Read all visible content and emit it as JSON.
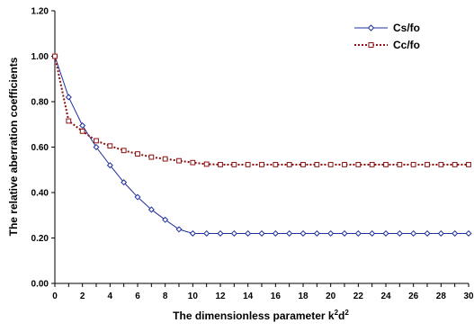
{
  "chart_data": {
    "type": "line",
    "xlabel": "The dimensionless parameter k",
    "xlabel_sup1": "2",
    "xlabel_mid": "d",
    "xlabel_sup2": "2",
    "ylabel": "The relative aberration coefficients",
    "xlim": [
      0,
      30
    ],
    "ylim": [
      0,
      1.2
    ],
    "x_ticks": [
      0,
      2,
      4,
      6,
      8,
      10,
      12,
      14,
      16,
      18,
      20,
      22,
      24,
      26,
      28,
      30
    ],
    "y_ticks": [
      "0.00",
      "0.20",
      "0.40",
      "0.60",
      "0.80",
      "1.00",
      "1.20"
    ],
    "grid": false,
    "legend_position": "top-right",
    "x": [
      0,
      1,
      2,
      3,
      4,
      5,
      6,
      7,
      8,
      9,
      10,
      11,
      12,
      13,
      14,
      15,
      16,
      17,
      18,
      19,
      20,
      21,
      22,
      23,
      24,
      25,
      26,
      27,
      28,
      29,
      30
    ],
    "series": [
      {
        "name": "Cs/fo",
        "color": "#1f2f9e",
        "marker": "diamond",
        "line": "solid",
        "values": [
          1.0,
          0.82,
          0.695,
          0.6,
          0.52,
          0.445,
          0.38,
          0.325,
          0.28,
          0.238,
          0.22,
          0.22,
          0.22,
          0.22,
          0.22,
          0.22,
          0.22,
          0.22,
          0.22,
          0.22,
          0.22,
          0.22,
          0.22,
          0.22,
          0.22,
          0.22,
          0.22,
          0.22,
          0.22,
          0.22,
          0.22
        ]
      },
      {
        "name": "Cc/fo",
        "color": "#8b1010",
        "marker": "square",
        "line": "dotted",
        "values": [
          1.0,
          0.715,
          0.67,
          0.628,
          0.605,
          0.585,
          0.57,
          0.556,
          0.548,
          0.54,
          0.532,
          0.525,
          0.523,
          0.523,
          0.523,
          0.523,
          0.523,
          0.523,
          0.523,
          0.523,
          0.523,
          0.523,
          0.523,
          0.523,
          0.523,
          0.523,
          0.523,
          0.523,
          0.523,
          0.523,
          0.523
        ]
      }
    ]
  }
}
